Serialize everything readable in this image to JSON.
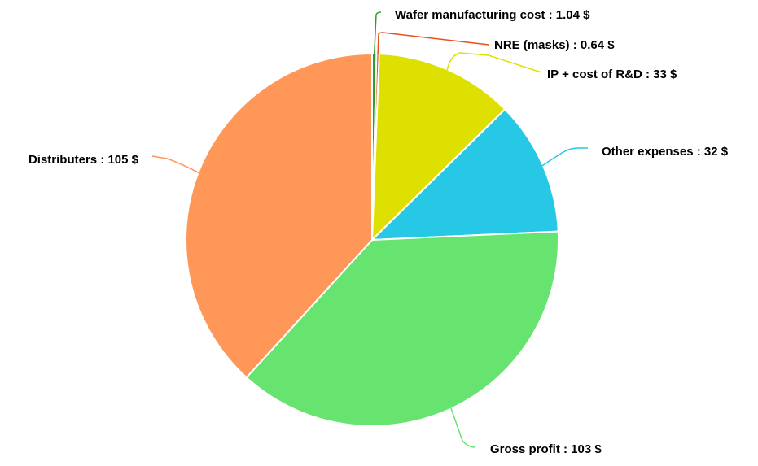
{
  "chart_data": {
    "type": "pie",
    "title": "",
    "unit": "$",
    "slices": [
      {
        "name": "Wafer manufacturing cost",
        "value": 1.04,
        "color": "#2ca02c",
        "label": "Wafer manufacturing cost : 1.04 $"
      },
      {
        "name": "NRE (masks)",
        "value": 0.64,
        "color": "#e8501e",
        "label": "NRE (masks) : 0.64 $"
      },
      {
        "name": "IP + cost of R&D",
        "value": 33,
        "color": "#dde000",
        "label": "IP + cost of R&D : 33 $"
      },
      {
        "name": "Other expenses",
        "value": 32,
        "color": "#26c8e6",
        "label": "Other expenses : 32 $"
      },
      {
        "name": "Gross profit",
        "value": 103,
        "color": "#66e46f",
        "label": "Gross profit : 103 $"
      },
      {
        "name": "Distributers",
        "value": 105,
        "color": "#ff9758",
        "label": "Distributers : 105 $"
      }
    ],
    "legend": "none",
    "data_labels": "outside-with-leader-lines"
  }
}
